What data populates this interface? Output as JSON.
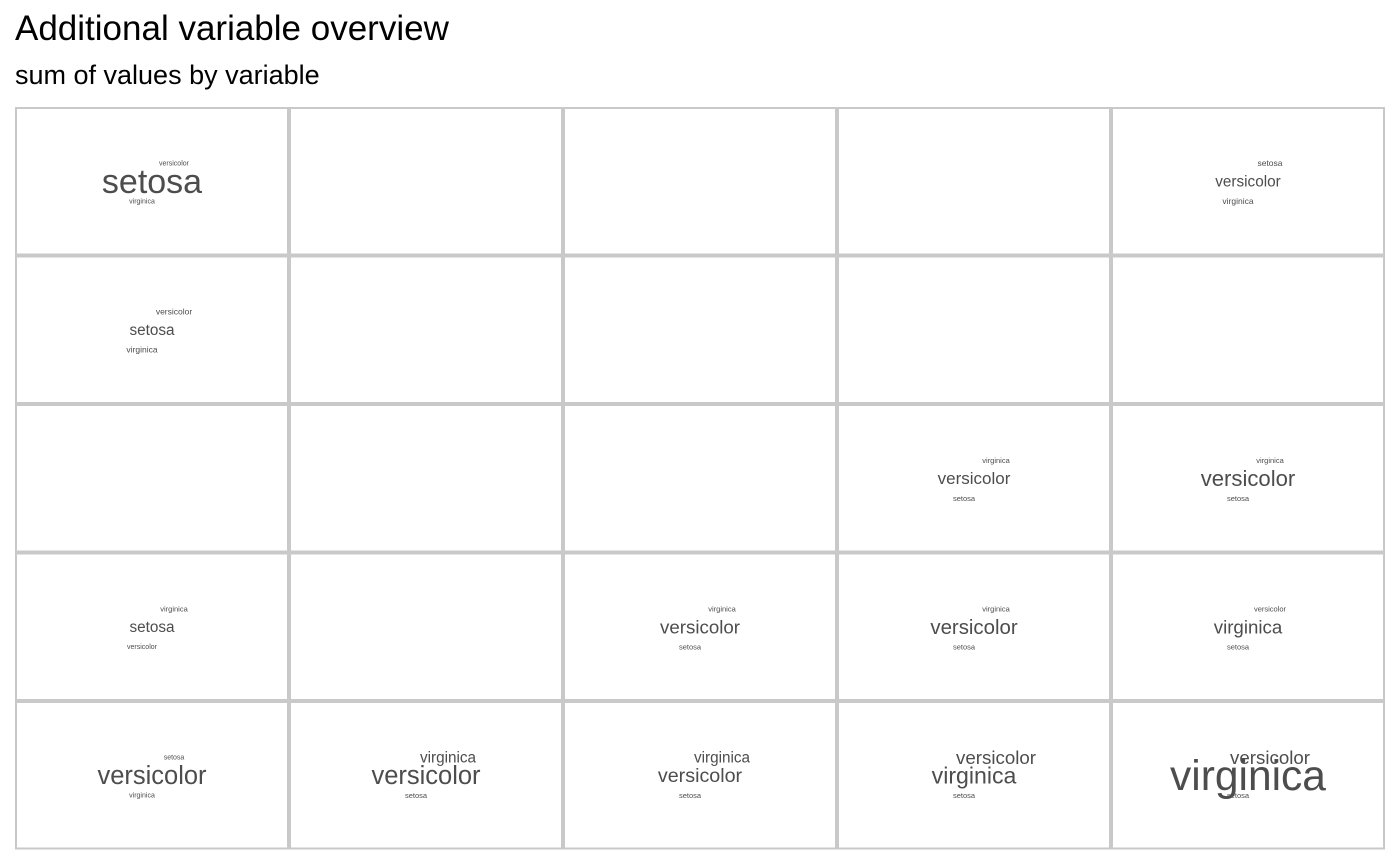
{
  "title": "Additional variable overview",
  "subtitle": "sum of values by variable",
  "colors": {
    "text": "#4d4d4d",
    "panel_border": "#c9c9c9",
    "background": "#ffffff"
  },
  "chart_data": {
    "type": "wordcloud-grid",
    "rows": 5,
    "cols": 5,
    "cells": [
      {
        "row": 0,
        "col": 0,
        "words": [
          {
            "text": "setosa",
            "weight": 1.0
          },
          {
            "text": "versicolor",
            "weight": 0.2
          },
          {
            "text": "virginica",
            "weight": 0.18
          }
        ]
      },
      {
        "row": 0,
        "col": 4,
        "words": [
          {
            "text": "versicolor",
            "weight": 0.45
          },
          {
            "text": "setosa",
            "weight": 0.25
          },
          {
            "text": "virginica",
            "weight": 0.25
          }
        ]
      },
      {
        "row": 1,
        "col": 0,
        "words": [
          {
            "text": "setosa",
            "weight": 0.45
          },
          {
            "text": "versicolor",
            "weight": 0.25
          },
          {
            "text": "virginica",
            "weight": 0.25
          }
        ]
      },
      {
        "row": 2,
        "col": 3,
        "words": [
          {
            "text": "versicolor",
            "weight": 0.5
          },
          {
            "text": "virginica",
            "weight": 0.22
          },
          {
            "text": "setosa",
            "weight": 0.22
          }
        ]
      },
      {
        "row": 2,
        "col": 4,
        "words": [
          {
            "text": "versicolor",
            "weight": 0.65
          },
          {
            "text": "virginica",
            "weight": 0.22
          },
          {
            "text": "setosa",
            "weight": 0.22
          }
        ]
      },
      {
        "row": 3,
        "col": 0,
        "words": [
          {
            "text": "setosa",
            "weight": 0.45
          },
          {
            "text": "versicolor",
            "weight": 0.2
          },
          {
            "text": "virginica",
            "weight": 0.22
          }
        ]
      },
      {
        "row": 3,
        "col": 2,
        "words": [
          {
            "text": "versicolor",
            "weight": 0.55
          },
          {
            "text": "virginica",
            "weight": 0.22
          },
          {
            "text": "setosa",
            "weight": 0.22
          }
        ]
      },
      {
        "row": 3,
        "col": 3,
        "words": [
          {
            "text": "versicolor",
            "weight": 0.6
          },
          {
            "text": "virginica",
            "weight": 0.22
          },
          {
            "text": "setosa",
            "weight": 0.22
          }
        ]
      },
      {
        "row": 3,
        "col": 4,
        "words": [
          {
            "text": "virginica",
            "weight": 0.55
          },
          {
            "text": "versicolor",
            "weight": 0.22
          },
          {
            "text": "setosa",
            "weight": 0.22
          }
        ]
      },
      {
        "row": 4,
        "col": 0,
        "words": [
          {
            "text": "versicolor",
            "weight": 0.75
          },
          {
            "text": "setosa",
            "weight": 0.2
          },
          {
            "text": "virginica",
            "weight": 0.2
          }
        ]
      },
      {
        "row": 4,
        "col": 1,
        "words": [
          {
            "text": "versicolor",
            "weight": 0.75
          },
          {
            "text": "virginica",
            "weight": 0.45
          },
          {
            "text": "setosa",
            "weight": 0.22
          }
        ]
      },
      {
        "row": 4,
        "col": 2,
        "words": [
          {
            "text": "versicolor",
            "weight": 0.58
          },
          {
            "text": "virginica",
            "weight": 0.45
          },
          {
            "text": "setosa",
            "weight": 0.22
          }
        ]
      },
      {
        "row": 4,
        "col": 3,
        "words": [
          {
            "text": "versicolor",
            "weight": 0.55
          },
          {
            "text": "virginica",
            "weight": 0.68
          },
          {
            "text": "setosa",
            "weight": 0.22
          }
        ]
      },
      {
        "row": 4,
        "col": 4,
        "words": [
          {
            "text": "versicolor",
            "weight": 0.55
          },
          {
            "text": "setosa",
            "weight": 0.22
          },
          {
            "text": "virginica",
            "weight": 1.25
          }
        ]
      }
    ]
  }
}
